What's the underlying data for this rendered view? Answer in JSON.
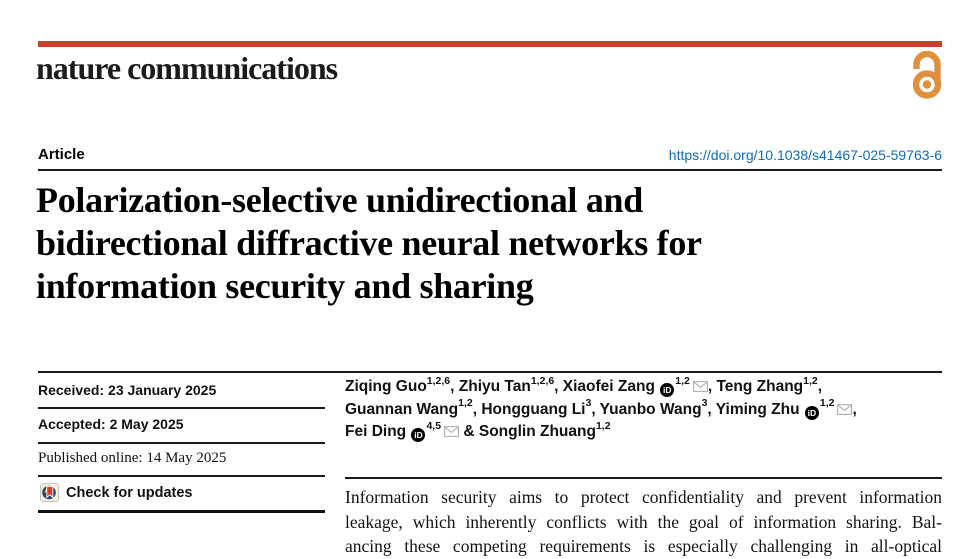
{
  "brand": {
    "journal_name": "nature communications",
    "bar_color": "#c8402f",
    "open_access_icon": "open-access-lock",
    "open_access_color": "#df8f3e"
  },
  "header": {
    "article_label": "Article",
    "doi": "https://doi.org/10.1038/s41467-025-59763-6",
    "doi_color": "#0f6cb4"
  },
  "title": {
    "lines": [
      "Polarization-selective unidirectional and",
      "bidirectional diffractive neural networks for",
      "information security and sharing"
    ]
  },
  "meta": {
    "received": "Received: 23 January 2025",
    "accepted": "Accepted: 2 May 2025",
    "published": "Published online: 14 May 2025",
    "check_updates_label": "Check for updates",
    "check_updates_icon": "crossmark-icon"
  },
  "authors": {
    "icons": {
      "orcid_text": "iD",
      "orcid_name": "orcid-icon",
      "mail_name": "mail-icon"
    },
    "lines": [
      [
        {
          "t": "text",
          "v": "Ziqing Guo"
        },
        {
          "t": "sup",
          "v": "1,2,6"
        },
        {
          "t": "text",
          "v": ", Zhiyu Tan"
        },
        {
          "t": "sup",
          "v": "1,2,6"
        },
        {
          "t": "text",
          "v": ", Xiaofei Zang "
        },
        {
          "t": "orcid"
        },
        {
          "t": "sup",
          "v": "1,2"
        },
        {
          "t": "mail"
        },
        {
          "t": "text",
          "v": ", Teng Zhang"
        },
        {
          "t": "sup",
          "v": "1,2"
        },
        {
          "t": "text",
          "v": ","
        }
      ],
      [
        {
          "t": "text",
          "v": "Guannan Wang"
        },
        {
          "t": "sup",
          "v": "1,2"
        },
        {
          "t": "text",
          "v": ", Hongguang Li"
        },
        {
          "t": "sup",
          "v": "3"
        },
        {
          "t": "text",
          "v": ", Yuanbo Wang"
        },
        {
          "t": "sup",
          "v": "3"
        },
        {
          "t": "text",
          "v": ", Yiming Zhu "
        },
        {
          "t": "orcid"
        },
        {
          "t": "sup",
          "v": "1,2"
        },
        {
          "t": "mail"
        },
        {
          "t": "text",
          "v": ","
        }
      ],
      [
        {
          "t": "text",
          "v": "Fei Ding "
        },
        {
          "t": "orcid"
        },
        {
          "t": "sup",
          "v": "4,5"
        },
        {
          "t": "mail"
        },
        {
          "t": "text",
          "v": " & Songlin Zhuang"
        },
        {
          "t": "sup",
          "v": "1,2"
        }
      ]
    ]
  },
  "abstract": {
    "lines": [
      "Information security aims to protect confidentiality and prevent information",
      "leakage, which inherently conflicts with the goal of information sharing. Bal-",
      "ancing these competing requirements is especially challenging in all-optical"
    ]
  }
}
